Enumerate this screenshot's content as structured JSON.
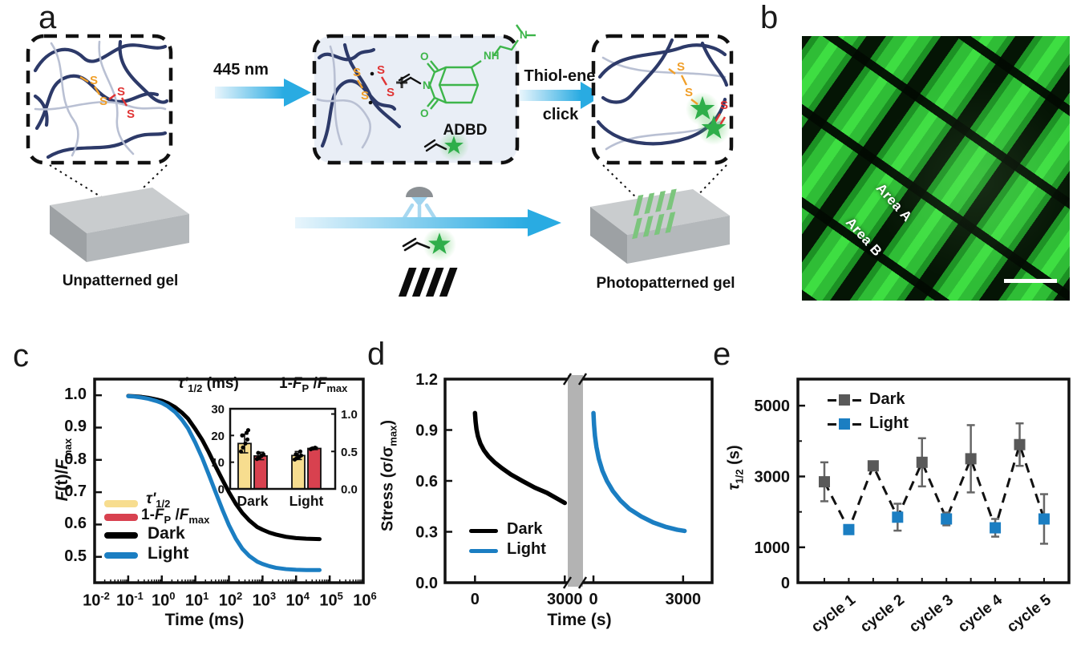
{
  "figure": {
    "panel_labels": {
      "a": "a",
      "b": "b",
      "c": "c",
      "d": "d",
      "e": "e"
    }
  },
  "panel_a": {
    "wavelength": "445 nm",
    "reaction_line1": "Thiol-ene",
    "reaction_line2": "click",
    "plus": "+",
    "molecule_name": "ADBD",
    "caption_unpatterned": "Unpatterned gel",
    "caption_patterned": "Photopatterned gel",
    "atoms": {
      "s": "S",
      "o": "O",
      "n": "N",
      "nh": "NH"
    },
    "icons": [
      "projector-lamp-icon",
      "photomask-icon",
      "green-star-fluorophore-icon",
      "allyl-group-icon",
      "reaction-arrow"
    ]
  },
  "panel_b": {
    "area_a": "Area A",
    "area_b": "Area B"
  },
  "labels": {
    "c_y": {
      "F1": "F",
      "t": "(t)/",
      "F2": "F",
      "sub": "max"
    },
    "tau_unit_ms": " (ms)",
    "d_y": {
      "pre": "Stress (σ/σ",
      "sub": "max",
      "post": ")"
    },
    "e_y": {
      "sym": "τ",
      "sub": "1/2",
      "unit": " (s)"
    }
  },
  "rich": {
    "tau": {
      "sym": "τ'",
      "sub": "1/2"
    },
    "fp": {
      "pre": "1-",
      "F1": "F",
      "sub1": "P",
      "mid": " /",
      "F2": "F",
      "sub2": "max"
    }
  },
  "colors": {
    "accent_blue": "#1b7ec2",
    "arrow_blue": "#29abe2",
    "legend_yellow": "#f7dd8f",
    "legend_red": "#d8414f",
    "dark_marker_gray": "#595959",
    "star_green": "#2fae4a",
    "pattern_green": "#7cc57d",
    "polymer_navy": "#2d3a69",
    "polymer_light": "#b9c0d3",
    "sulfur_orange": "#f09f2a",
    "sulfur_red": "#e03434",
    "box_bg_blue": "#e9eef6",
    "micrograph_green": "#2fbd36",
    "break_band_gray": "#b3b3b3"
  },
  "chart_data": [
    {
      "id": "c_main",
      "panel": "c",
      "type": "line",
      "xlabel": "Time (ms)",
      "ylabel": "F(t)/Fmax",
      "x_scale": "log",
      "x_tick_base": "10",
      "x_tick_exponents": [
        -2,
        -1,
        0,
        1,
        2,
        3,
        4,
        5,
        6
      ],
      "y_ticks": [
        0.5,
        0.6,
        0.7,
        0.8,
        0.9,
        1.0
      ],
      "ylim": [
        0.42,
        1.05
      ],
      "series": [
        {
          "name": "Dark",
          "color": "#000000",
          "x": [
            0.1,
            0.15,
            0.25,
            0.4,
            0.7,
            1,
            1.5,
            2.5,
            4,
            6,
            10,
            16,
            25,
            40,
            65,
            100,
            160,
            250,
            400,
            700,
            1000,
            1600,
            2500,
            5000,
            10000,
            20000,
            50000
          ],
          "y": [
            0.998,
            0.997,
            0.995,
            0.992,
            0.987,
            0.983,
            0.976,
            0.963,
            0.946,
            0.928,
            0.895,
            0.862,
            0.824,
            0.78,
            0.737,
            0.7,
            0.664,
            0.636,
            0.613,
            0.592,
            0.584,
            0.575,
            0.569,
            0.562,
            0.558,
            0.556,
            0.555
          ]
        },
        {
          "name": "Light",
          "color": "#1b7ec2",
          "x": [
            0.1,
            0.15,
            0.25,
            0.4,
            0.7,
            1,
            1.5,
            2.5,
            4,
            6,
            10,
            16,
            25,
            40,
            65,
            100,
            160,
            250,
            400,
            700,
            1000,
            1600,
            2500,
            5000,
            10000,
            20000,
            50000
          ],
          "y": [
            0.997,
            0.996,
            0.993,
            0.989,
            0.982,
            0.976,
            0.966,
            0.948,
            0.924,
            0.898,
            0.853,
            0.806,
            0.755,
            0.7,
            0.644,
            0.598,
            0.556,
            0.525,
            0.503,
            0.485,
            0.478,
            0.471,
            0.466,
            0.462,
            0.46,
            0.459,
            0.459
          ]
        }
      ],
      "legend": [
        {
          "label": "τ'1/2",
          "swatch": "#f7dd8f"
        },
        {
          "label": "1-FP/Fmax",
          "swatch": "#d8414f"
        },
        {
          "label": "Dark",
          "swatch": "#000000"
        },
        {
          "label": "Light",
          "swatch": "#1b7ec2"
        }
      ]
    },
    {
      "id": "c_inset",
      "panel": "c",
      "type": "bar",
      "categories": [
        "Dark",
        "Light"
      ],
      "left_axis": {
        "label": "τ'1/2 (ms)",
        "ticks": [
          0,
          10,
          20,
          30
        ],
        "lim": [
          0,
          30
        ]
      },
      "right_axis": {
        "label": "1-FP/Fmax",
        "ticks": [
          0.0,
          0.5,
          1.0
        ],
        "lim": [
          0,
          1.07
        ]
      },
      "series": [
        {
          "name": "τ'1/2",
          "axis": "left",
          "color": "#f7dd8f",
          "values": [
            17,
            12.5
          ],
          "errors": [
            3.5,
            1.5
          ],
          "dots": [
            [
              14,
              15.5,
              17,
              18.5,
              20,
              21,
              22
            ],
            [
              11,
              11.5,
              12,
              12.5,
              13,
              14
            ]
          ]
        },
        {
          "name": "1-FP/Fmax",
          "axis": "right",
          "color": "#d8414f",
          "values": [
            0.44,
            0.54
          ],
          "errors": [
            0.05,
            0.015
          ],
          "dots": [
            [
              0.4,
              0.42,
              0.44,
              0.46,
              0.48
            ],
            [
              0.53,
              0.54,
              0.55
            ]
          ]
        }
      ]
    },
    {
      "id": "d",
      "panel": "d",
      "type": "line",
      "xlabel": "Time (s)",
      "ylabel": "Stress (σ/σmax)",
      "y_ticks": [
        0.0,
        0.3,
        0.6,
        0.9,
        1.2
      ],
      "ylim": [
        0,
        1.2
      ],
      "x_break": true,
      "break_band_color": "#b3b3b3",
      "segments": [
        {
          "x_ticks": [
            0,
            3000
          ],
          "xlim": [
            -1000,
            3100
          ]
        },
        {
          "x_ticks": [
            0,
            3000
          ],
          "xlim": [
            -350,
            3970
          ]
        }
      ],
      "series": [
        {
          "name": "Dark",
          "segment": 0,
          "color": "#000000",
          "x": [
            0,
            20,
            50,
            100,
            180,
            300,
            450,
            650,
            900,
            1200,
            1600,
            2000,
            2400,
            2800,
            3000
          ],
          "y": [
            1.0,
            0.95,
            0.905,
            0.862,
            0.82,
            0.78,
            0.745,
            0.71,
            0.675,
            0.638,
            0.598,
            0.56,
            0.53,
            0.49,
            0.47
          ]
        },
        {
          "name": "Light",
          "segment": 1,
          "color": "#1b7ec2",
          "x": [
            0,
            20,
            50,
            100,
            180,
            300,
            450,
            650,
            900,
            1200,
            1600,
            2000,
            2400,
            2800,
            3050
          ],
          "y": [
            1.0,
            0.93,
            0.865,
            0.8,
            0.73,
            0.66,
            0.6,
            0.54,
            0.485,
            0.435,
            0.39,
            0.355,
            0.33,
            0.312,
            0.305
          ]
        }
      ],
      "legend": [
        {
          "label": "Dark",
          "color": "#000000"
        },
        {
          "label": "Light",
          "color": "#1b7ec2"
        }
      ]
    },
    {
      "id": "e",
      "panel": "e",
      "type": "scatter-line",
      "ylabel": "τ1/2 (s)",
      "y_ticks_labeled": [
        0,
        1000,
        3000,
        5000
      ],
      "y_ticks_minor": [
        2000,
        4000
      ],
      "ylim": [
        0,
        5750
      ],
      "x_categories": [
        "cycle 1",
        "cycle 2",
        "cycle 3",
        "cycle 4",
        "cycle 5"
      ],
      "line_style": "dashed",
      "points": [
        {
          "series": "Dark",
          "cycle": 1,
          "value": 2850,
          "err": 550
        },
        {
          "series": "Light",
          "cycle": 1,
          "value": 1500,
          "err": 120
        },
        {
          "series": "Dark",
          "cycle": 2,
          "value": 3300,
          "err": 120
        },
        {
          "series": "Light",
          "cycle": 2,
          "value": 1850,
          "err": 380
        },
        {
          "series": "Dark",
          "cycle": 3,
          "value": 3400,
          "err": 680
        },
        {
          "series": "Light",
          "cycle": 3,
          "value": 1800,
          "err": 180
        },
        {
          "series": "Dark",
          "cycle": 4,
          "value": 3500,
          "err": 950
        },
        {
          "series": "Light",
          "cycle": 4,
          "value": 1550,
          "err": 250
        },
        {
          "series": "Dark",
          "cycle": 5,
          "value": 3900,
          "err": 600
        },
        {
          "series": "Light",
          "cycle": 5,
          "value": 1800,
          "err": 700
        }
      ],
      "series_style": {
        "Dark": {
          "color": "#595959"
        },
        "Light": {
          "color": "#1b7ec2"
        }
      },
      "legend": [
        {
          "label": "Dark",
          "color": "#595959"
        },
        {
          "label": "Light",
          "color": "#1b7ec2"
        }
      ]
    }
  ]
}
